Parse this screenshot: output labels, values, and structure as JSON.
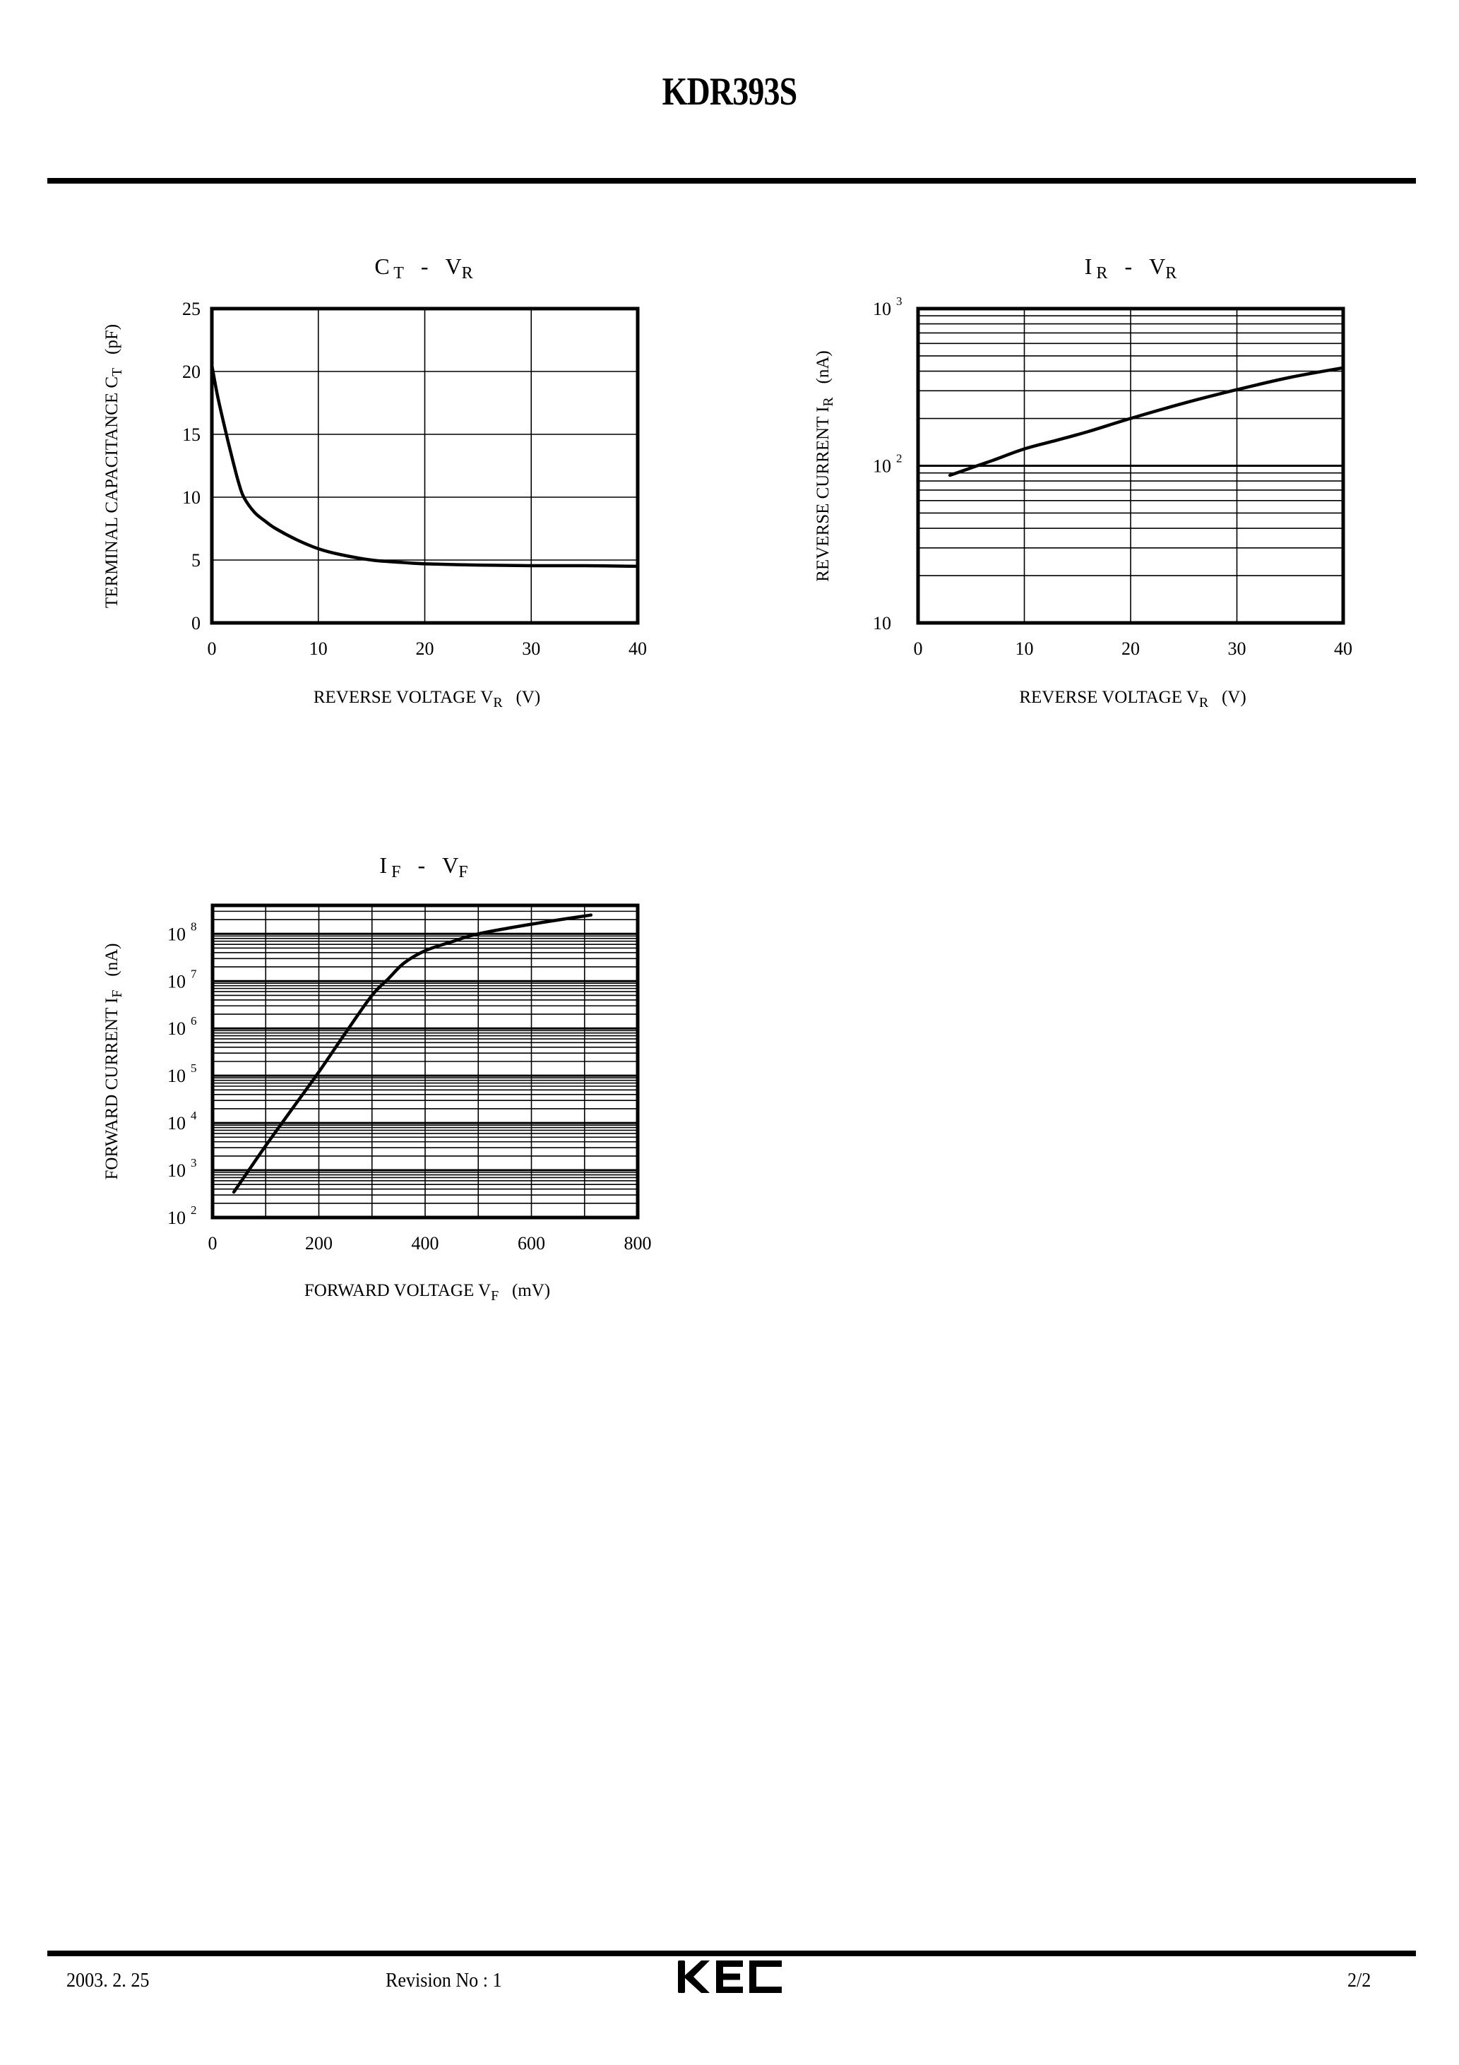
{
  "document": {
    "title": "KDR393S"
  },
  "footer": {
    "date": "2003. 2. 25",
    "revision": "Revision No : 1",
    "logo": "KEC",
    "page": "2/2"
  },
  "chart_data": [
    {
      "id": "ct-vr",
      "type": "line",
      "title": "CT - VR",
      "title_main": [
        "C",
        "T",
        "V",
        "R"
      ],
      "xlabel": "REVERSE VOLTAGE VR (V)",
      "ylabel": "TERMINAL CAPACITANCE CT (pF)",
      "x_scale": "linear",
      "y_scale": "linear",
      "xlim": [
        0,
        40
      ],
      "ylim": [
        0,
        25
      ],
      "x_ticks": [
        "0",
        "10",
        "20",
        "30",
        "40"
      ],
      "y_ticks": [
        "0",
        "5",
        "10",
        "15",
        "20",
        "25"
      ],
      "grid": true,
      "series": [
        {
          "name": "CT",
          "x": [
            0,
            0.5,
            1,
            1.5,
            2,
            2.5,
            3,
            4,
            5,
            6,
            8,
            10,
            12,
            15,
            18,
            20,
            25,
            30,
            35,
            40
          ],
          "y": [
            20.5,
            18.2,
            16.3,
            14.5,
            12.8,
            11.2,
            10.0,
            8.8,
            8.1,
            7.5,
            6.6,
            5.9,
            5.45,
            5.0,
            4.8,
            4.7,
            4.6,
            4.55,
            4.55,
            4.5
          ]
        }
      ]
    },
    {
      "id": "ir-vr",
      "type": "line",
      "title": "IR - VR",
      "title_main": [
        "I",
        "R",
        "V",
        "R"
      ],
      "xlabel": "REVERSE VOLTAGE VR (V)",
      "ylabel": "REVERSE CURRENT IR (nA)",
      "x_scale": "linear",
      "y_scale": "log",
      "xlim": [
        0,
        40
      ],
      "ylim": [
        10,
        1000
      ],
      "x_ticks": [
        "0",
        "10",
        "20",
        "30",
        "40"
      ],
      "y_ticks": [
        {
          "base": "10",
          "exp": "",
          "value": 10
        },
        {
          "base": "10",
          "exp": "2",
          "value": 100
        },
        {
          "base": "10",
          "exp": "3",
          "value": 1000
        }
      ],
      "grid": true,
      "series": [
        {
          "name": "IR",
          "x": [
            3,
            5,
            7,
            10,
            13,
            16,
            20,
            25,
            30,
            35,
            40
          ],
          "y": [
            87,
            97,
            108,
            128,
            145,
            165,
            200,
            250,
            305,
            365,
            420
          ]
        }
      ]
    },
    {
      "id": "if-vf",
      "type": "line",
      "title": "IF - VF",
      "title_main": [
        "I",
        "F",
        "V",
        "F"
      ],
      "xlabel": "FORWARD VOLTAGE VF (mV)",
      "ylabel": "FORWARD CURRENT IF (nA)",
      "x_scale": "linear",
      "y_scale": "log",
      "xlim": [
        0,
        800
      ],
      "ylim": [
        100,
        400000000
      ],
      "x_ticks": [
        "0",
        "200",
        "400",
        "600",
        "800"
      ],
      "y_ticks": [
        {
          "base": "10",
          "exp": "2",
          "value": 100
        },
        {
          "base": "10",
          "exp": "3",
          "value": 1000
        },
        {
          "base": "10",
          "exp": "4",
          "value": 10000
        },
        {
          "base": "10",
          "exp": "5",
          "value": 100000
        },
        {
          "base": "10",
          "exp": "6",
          "value": 1000000
        },
        {
          "base": "10",
          "exp": "7",
          "value": 10000000
        },
        {
          "base": "10",
          "exp": "8",
          "value": 100000000
        }
      ],
      "grid": true,
      "series": [
        {
          "name": "IF",
          "x": [
            40,
            100,
            150,
            200,
            250,
            300,
            330,
            360,
            400,
            450,
            500,
            600,
            712
          ],
          "y": [
            345,
            3300,
            20000,
            120000,
            800000,
            5000000,
            11000000,
            24000000,
            44000000,
            68000000,
            100000000,
            160000000,
            250000000
          ]
        }
      ]
    }
  ]
}
